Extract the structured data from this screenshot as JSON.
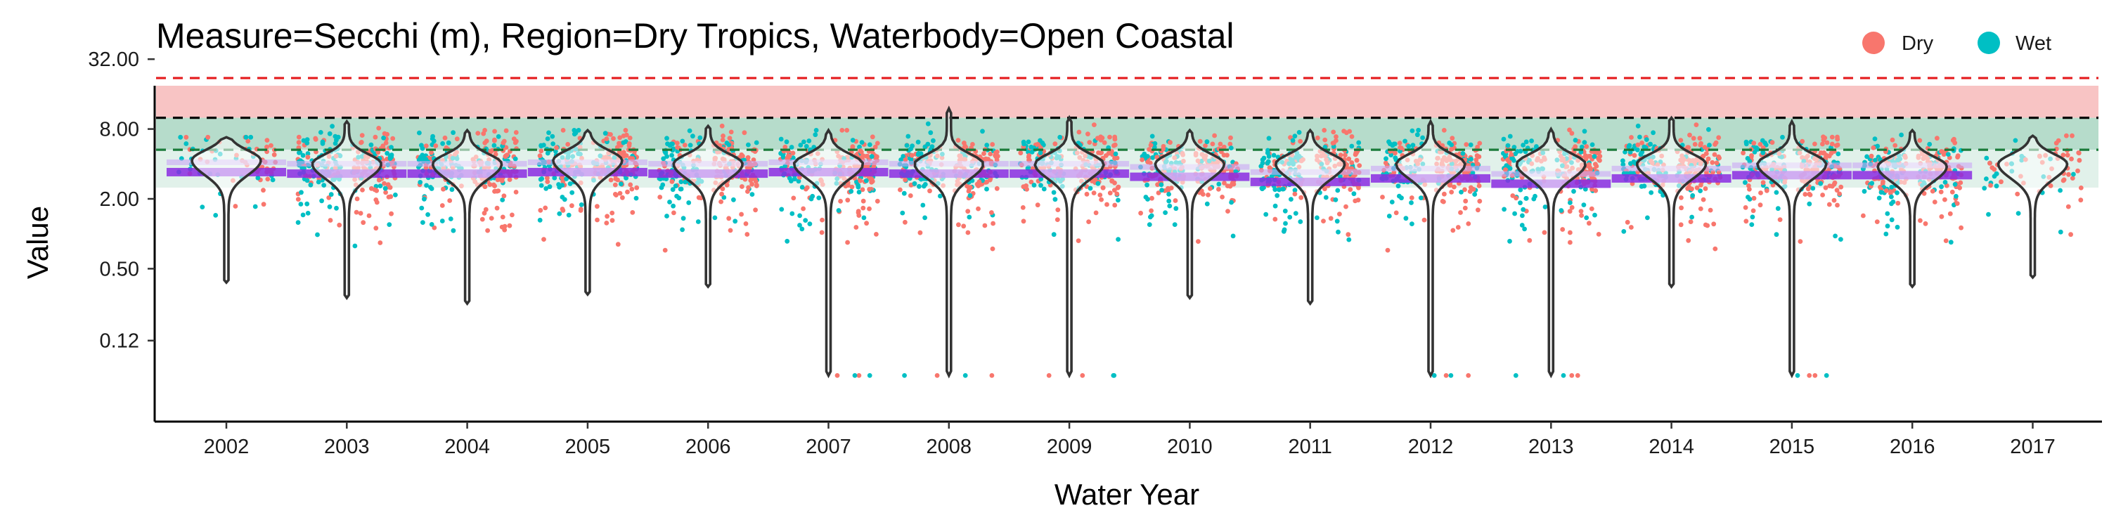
{
  "chart_data": {
    "type": "scatter",
    "title": "Measure=Secchi (m), Region=Dry Tropics, Waterbody=Open Coastal",
    "xlabel": "Water Year",
    "ylabel": "Value",
    "y_scale": "log2",
    "ylim": [
      0.05,
      50
    ],
    "y_ticks": [
      0.12,
      0.5,
      2.0,
      8.0,
      32.0
    ],
    "y_tick_labels": [
      "0.12",
      "0.50",
      "2.00",
      "8.00",
      "32.00"
    ],
    "x_ticks": [
      2002,
      2003,
      2004,
      2005,
      2006,
      2007,
      2008,
      2009,
      2010,
      2011,
      2012,
      2013,
      2014,
      2015,
      2016,
      2017
    ],
    "x_tick_labels": [
      "2002",
      "2003",
      "2004",
      "2005",
      "2006",
      "2007",
      "2008",
      "2009",
      "2010",
      "2011",
      "2012",
      "2013",
      "2014",
      "2015",
      "2016",
      "2017"
    ],
    "legend": {
      "placement": "top-right",
      "items": [
        {
          "label": "Dry",
          "color": "#F8766D"
        },
        {
          "label": "Wet",
          "color": "#00BFC4"
        }
      ]
    },
    "series_colors": {
      "Dry": "#F8766D",
      "Wet": "#00BFC4"
    },
    "bands": [
      {
        "y0": 14,
        "y1": 40,
        "color": "#FBE3E3"
      },
      {
        "y0": 10,
        "y1": 22,
        "color": "#F8C4C4"
      },
      {
        "y0": 5.3,
        "y1": 10,
        "color": "#B6DCCB"
      },
      {
        "y0": 2.5,
        "y1": 5.3,
        "color": "#E1F1EA"
      }
    ],
    "reference_lines": [
      {
        "y": 22,
        "color": "#E41A1C",
        "dash": "dashed"
      },
      {
        "y": 10,
        "color": "#000000",
        "dash": "dashed"
      },
      {
        "y": 5.3,
        "color": "#1B7B3A",
        "dash": "dashed"
      }
    ],
    "trend_color": "#8A2BE2",
    "annual": [
      {
        "year": 2002,
        "median": 4.3,
        "min": 0.38,
        "max": 6.8,
        "trend": 3.4
      },
      {
        "year": 2003,
        "median": 4.0,
        "min": 0.28,
        "max": 9.3,
        "trend": 3.3
      },
      {
        "year": 2004,
        "median": 4.0,
        "min": 0.25,
        "max": 7.8,
        "trend": 3.3
      },
      {
        "year": 2005,
        "median": 4.3,
        "min": 0.3,
        "max": 7.8,
        "trend": 3.4
      },
      {
        "year": 2006,
        "median": 4.0,
        "min": 0.35,
        "max": 8.5,
        "trend": 3.3
      },
      {
        "year": 2007,
        "median": 4.0,
        "min": 0.06,
        "max": 7.8,
        "trend": 3.4
      },
      {
        "year": 2008,
        "median": 4.0,
        "min": 0.06,
        "max": 12.0,
        "trend": 3.3
      },
      {
        "year": 2009,
        "median": 4.0,
        "min": 0.06,
        "max": 10.0,
        "trend": 3.3
      },
      {
        "year": 2010,
        "median": 4.0,
        "min": 0.28,
        "max": 7.8,
        "trend": 3.1
      },
      {
        "year": 2011,
        "median": 4.0,
        "min": 0.25,
        "max": 7.8,
        "trend": 2.8
      },
      {
        "year": 2012,
        "median": 4.0,
        "min": 0.06,
        "max": 9.3,
        "trend": 3.0
      },
      {
        "year": 2013,
        "median": 4.0,
        "min": 0.06,
        "max": 8.0,
        "trend": 2.7
      },
      {
        "year": 2014,
        "median": 4.0,
        "min": 0.35,
        "max": 10.0,
        "trend": 3.0
      },
      {
        "year": 2015,
        "median": 4.0,
        "min": 0.06,
        "max": 9.3,
        "trend": 3.2
      },
      {
        "year": 2016,
        "median": 3.8,
        "min": 0.35,
        "max": 7.8,
        "trend": 3.2
      },
      {
        "year": 2017,
        "median": 4.0,
        "min": 0.42,
        "max": 7.0,
        "trend": null
      }
    ]
  }
}
